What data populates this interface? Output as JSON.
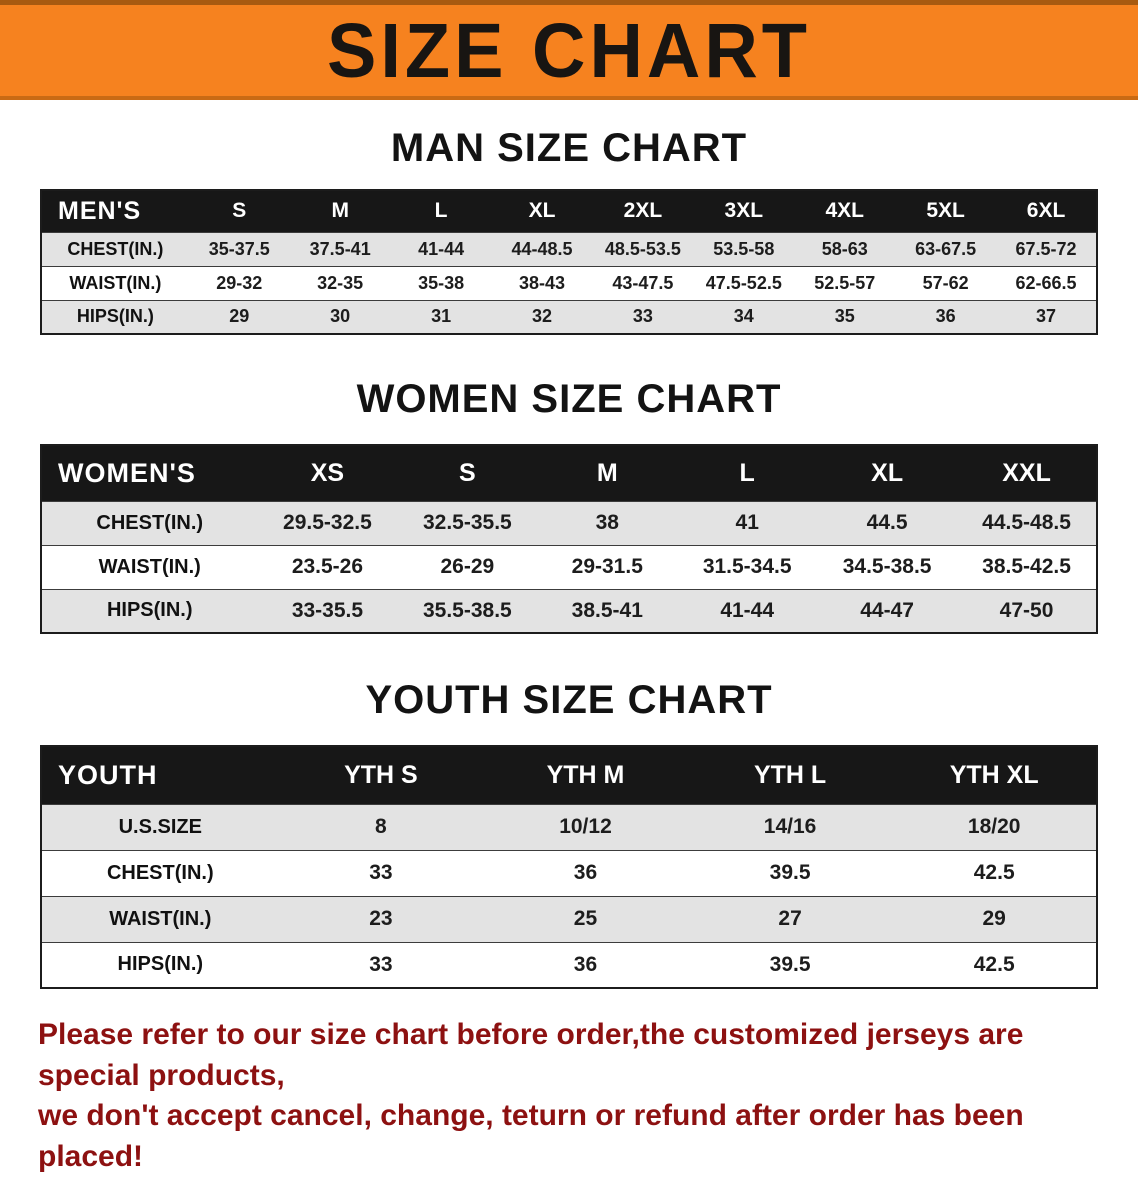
{
  "banner": {
    "title": "SIZE CHART"
  },
  "sections": [
    {
      "heading": "MAN SIZE CHART",
      "table": {
        "header": [
          "MEN'S",
          "S",
          "M",
          "L",
          "XL",
          "2XL",
          "3XL",
          "4XL",
          "5XL",
          "6XL"
        ],
        "rows": [
          [
            "CHEST(IN.)",
            "35-37.5",
            "37.5-41",
            "41-44",
            "44-48.5",
            "48.5-53.5",
            "53.5-58",
            "58-63",
            "63-67.5",
            "67.5-72"
          ],
          [
            "WAIST(IN.)",
            "29-32",
            "32-35",
            "35-38",
            "38-43",
            "43-47.5",
            "47.5-52.5",
            "52.5-57",
            "57-62",
            "62-66.5"
          ],
          [
            "HIPS(IN.)",
            "29",
            "30",
            "31",
            "32",
            "33",
            "34",
            "35",
            "36",
            "37"
          ]
        ]
      }
    },
    {
      "heading": "WOMEN SIZE CHART",
      "table": {
        "header": [
          "WOMEN'S",
          "XS",
          "S",
          "M",
          "L",
          "XL",
          "XXL"
        ],
        "rows": [
          [
            "CHEST(IN.)",
            "29.5-32.5",
            "32.5-35.5",
            "38",
            "41",
            "44.5",
            "44.5-48.5"
          ],
          [
            "WAIST(IN.)",
            "23.5-26",
            "26-29",
            "29-31.5",
            "31.5-34.5",
            "34.5-38.5",
            "38.5-42.5"
          ],
          [
            "HIPS(IN.)",
            "33-35.5",
            "35.5-38.5",
            "38.5-41",
            "41-44",
            "44-47",
            "47-50"
          ]
        ]
      }
    },
    {
      "heading": "YOUTH SIZE CHART",
      "table": {
        "header": [
          "YOUTH",
          "YTH S",
          "YTH M",
          "YTH L",
          "YTH XL"
        ],
        "rows": [
          [
            "U.S.SIZE",
            "8",
            "10/12",
            "14/16",
            "18/20"
          ],
          [
            "CHEST(IN.)",
            "33",
            "36",
            "39.5",
            "42.5"
          ],
          [
            "WAIST(IN.)",
            "23",
            "25",
            "27",
            "29"
          ],
          [
            "HIPS(IN.)",
            "33",
            "36",
            "39.5",
            "42.5"
          ]
        ]
      }
    }
  ],
  "footer": {
    "line1": "Please refer to our size chart before order,the customized jerseys are special products,",
    "line2": "we don't accept cancel, change, teturn or refund after order has been placed!"
  },
  "colors": {
    "banner_bg": "#f6821f",
    "table_header_bg": "#171717",
    "row_stripe": "#e3e3e3",
    "footer_text": "#8d1111"
  }
}
